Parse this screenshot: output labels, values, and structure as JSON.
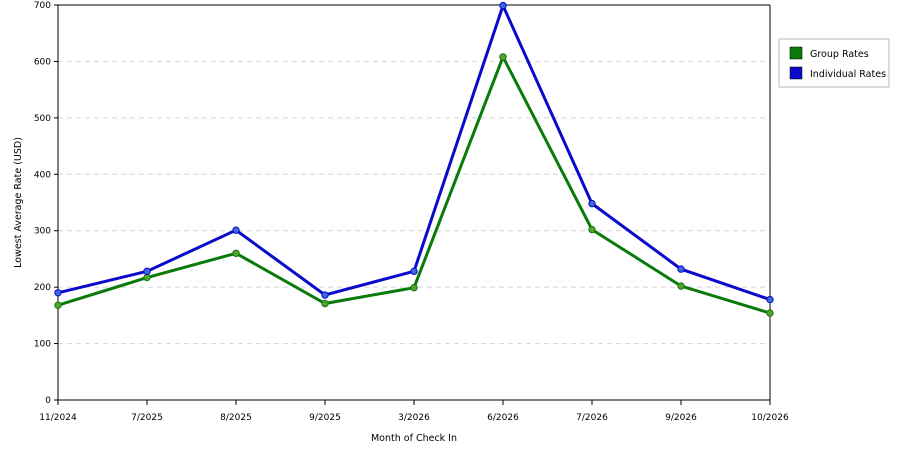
{
  "chart_data": {
    "type": "line",
    "title": "",
    "xlabel": "Month of Check In",
    "ylabel": "Lowest Average Rate (USD)",
    "ylim": [
      0,
      700
    ],
    "yticks": [
      0,
      100,
      200,
      300,
      400,
      500,
      600,
      700
    ],
    "grid": true,
    "legend_position": "right",
    "categories": [
      "11/2024",
      "7/2025",
      "8/2025",
      "9/2025",
      "3/2026",
      "6/2026",
      "7/2026",
      "9/2026",
      "10/2026"
    ],
    "series": [
      {
        "name": "Group Rates",
        "color": "#0a7a0a",
        "marker_color": "#5aa02c",
        "values": [
          168,
          217,
          260,
          171,
          199,
          608,
          302,
          202,
          154
        ]
      },
      {
        "name": "Individual Rates",
        "color": "#0a0acc",
        "marker_color": "#3a6ad8",
        "values": [
          190,
          228,
          301,
          186,
          228,
          699,
          348,
          232,
          178
        ]
      }
    ]
  }
}
